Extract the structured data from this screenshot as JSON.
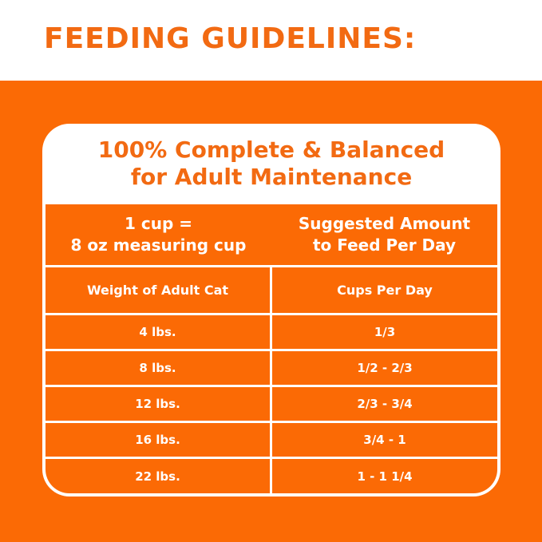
{
  "title": "FEEDING GUIDELINES:",
  "card": {
    "heading_line1": "100% Complete & Balanced",
    "heading_line2": "for Adult Maintenance",
    "header": {
      "left_line1": "1 cup =",
      "left_line2": "8 oz measuring cup",
      "right_line1": "Suggested Amount",
      "right_line2": "to Feed Per Day"
    },
    "columns": [
      "Weight of Adult Cat",
      "Cups Per Day"
    ],
    "rows": [
      [
        "4 lbs.",
        "1/3"
      ],
      [
        "8 lbs.",
        "1/2 - 2/3"
      ],
      [
        "12 lbs.",
        "2/3 - 3/4"
      ],
      [
        "16 lbs.",
        "3/4 - 1"
      ],
      [
        "22 lbs.",
        "1 - 1 1/4"
      ]
    ]
  },
  "colors": {
    "brand_orange": "#fb6a05",
    "title_orange": "#f26a12"
  }
}
